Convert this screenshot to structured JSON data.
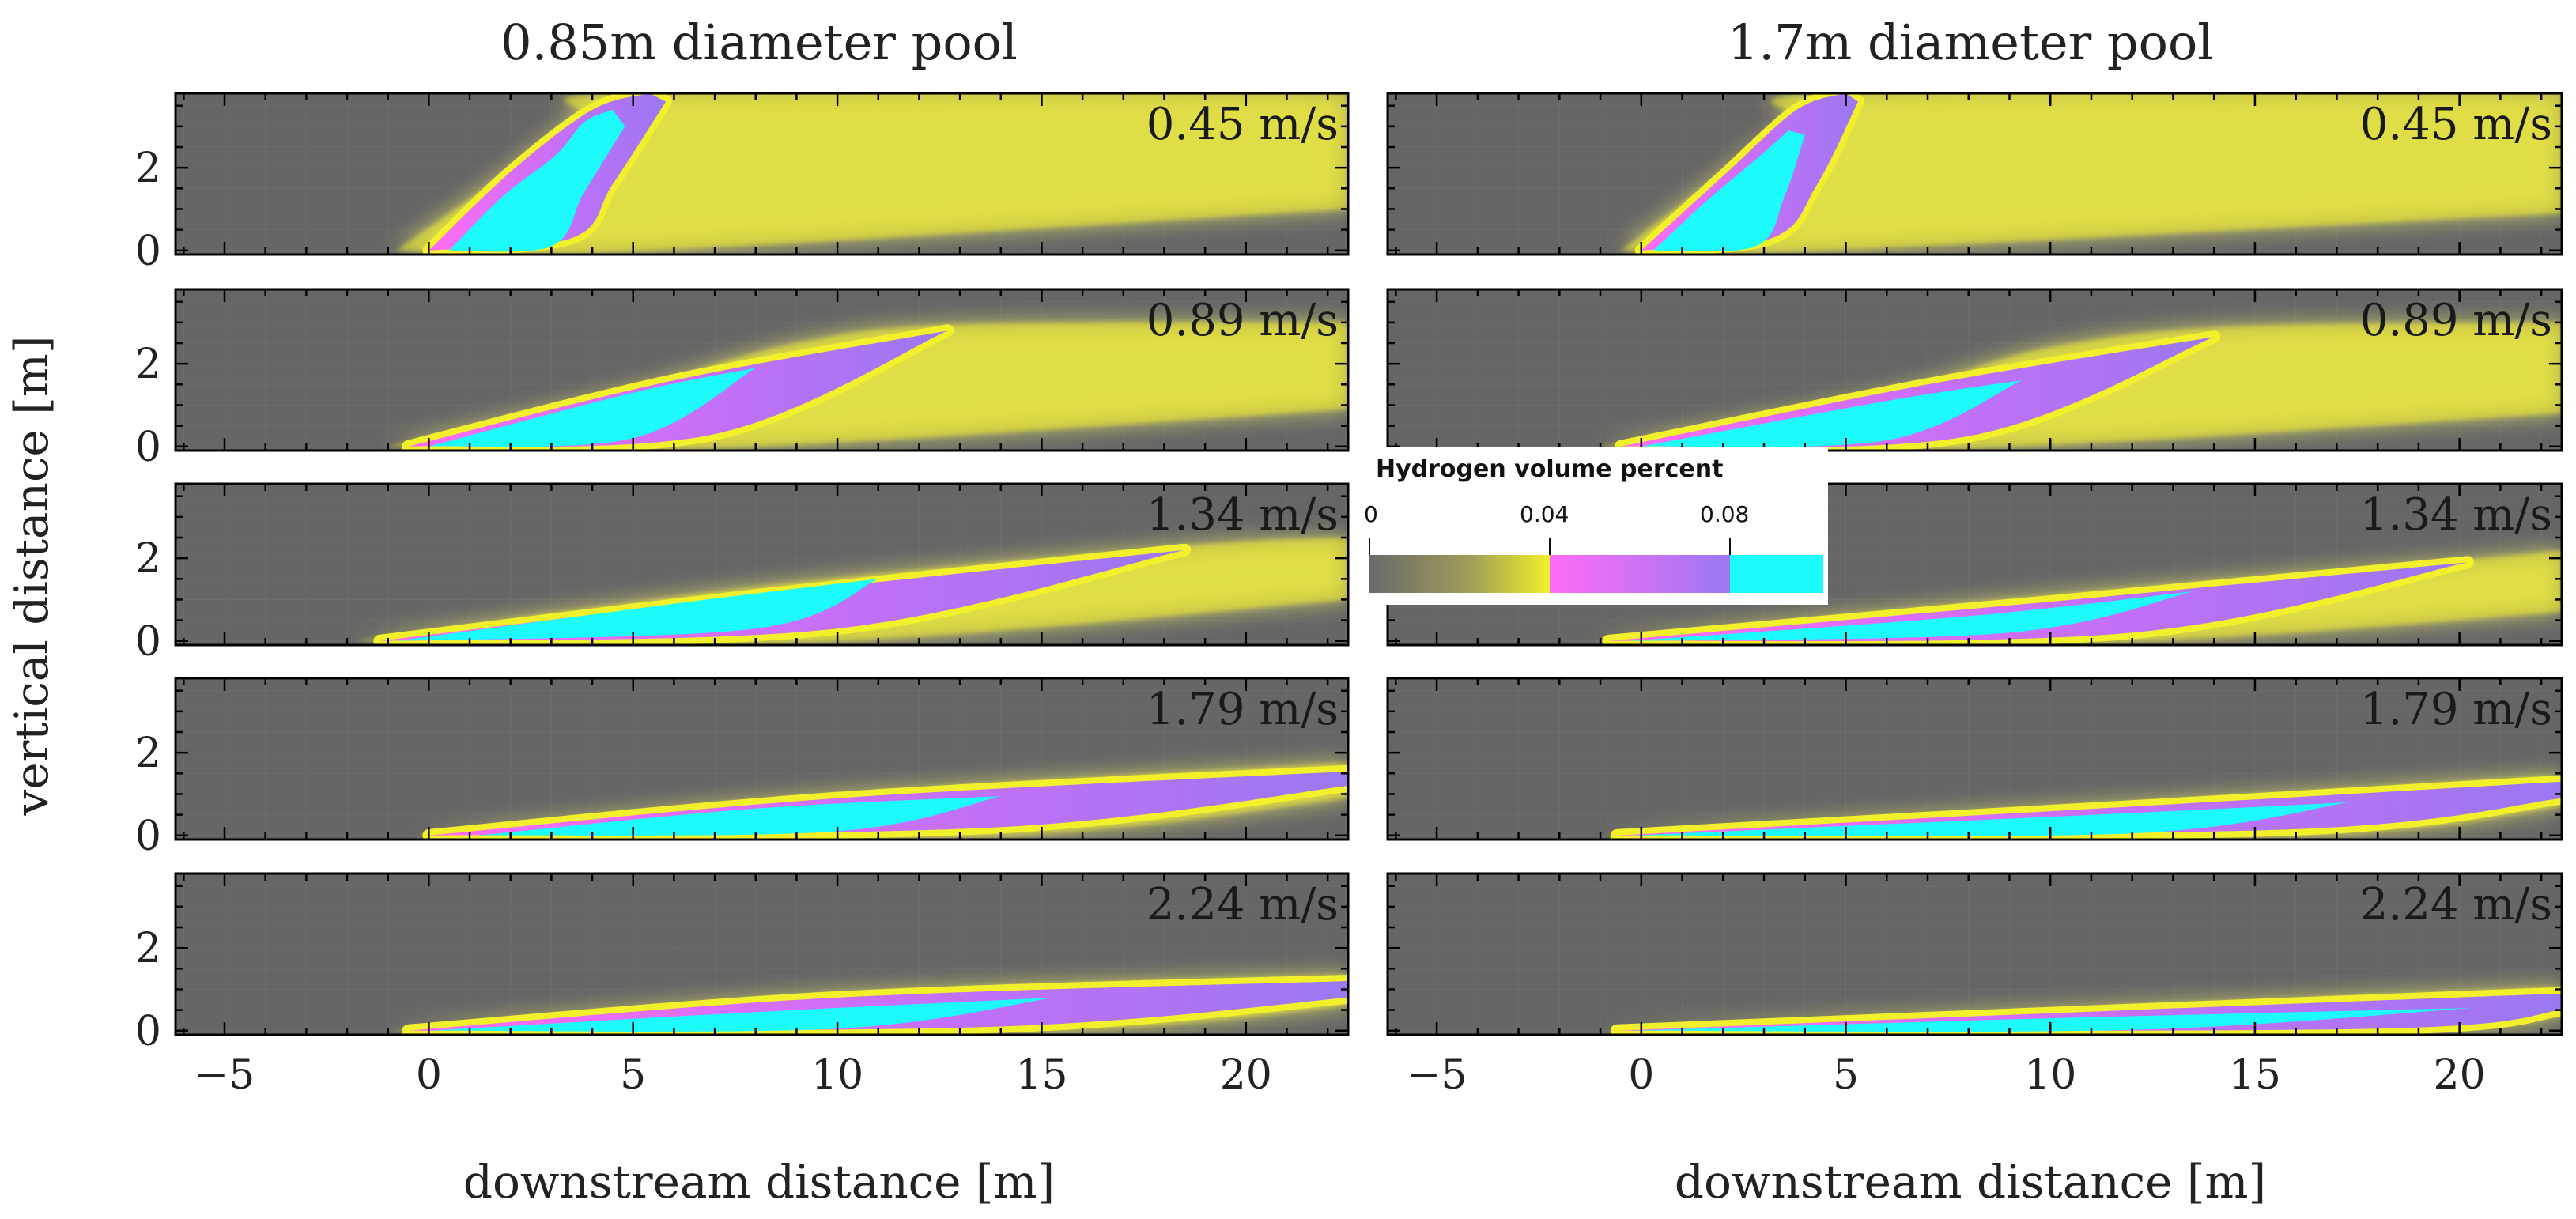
{
  "chart_data": {
    "type": "heatmap",
    "columns": [
      {
        "title": "0.85m diameter pool"
      },
      {
        "title": "1.7m diameter pool"
      }
    ],
    "speeds": [
      "0.45 m/s",
      "0.89 m/s",
      "1.34 m/s",
      "1.79 m/s",
      "2.24 m/s"
    ],
    "xlabel": "downstream distance [m]",
    "ylabel": "vertical distance [m]",
    "xlim": [
      -6.2,
      22.5
    ],
    "ylim": [
      -0.1,
      3.8
    ],
    "x_ticks": [
      -5,
      0,
      5,
      10,
      15,
      20
    ],
    "x_tick_labels": [
      "−5",
      "0",
      "5",
      "10",
      "15",
      "20"
    ],
    "y_ticks": [
      0,
      2
    ],
    "y_tick_labels": [
      "0",
      "2"
    ],
    "colorbar": {
      "title": "Hydrogen volume percent",
      "ticks": [
        0,
        0.04,
        0.08
      ],
      "tick_labels": [
        "0",
        "0.04",
        "0.08"
      ],
      "range": [
        0,
        0.1
      ]
    },
    "plumes": [
      [
        {
          "speed": 0.45,
          "yellow_top": [
            [
              -0.8,
              0
            ],
            [
              1.5,
              1.6
            ],
            [
              3.6,
              3.2
            ],
            [
              5,
              3.8
            ],
            [
              22.5,
              3.8
            ]
          ],
          "yellow_bottom": [
            [
              -0.8,
              0
            ],
            [
              5.5,
              0
            ],
            [
              22.5,
              1.0
            ]
          ],
          "magenta_top": [
            [
              0,
              0
            ],
            [
              2,
              1.9
            ],
            [
              4,
              3.4
            ],
            [
              5.4,
              3.8
            ]
          ],
          "magenta_bottom": [
            [
              0,
              0
            ],
            [
              3.5,
              0.3
            ],
            [
              4.5,
              1.6
            ],
            [
              5.8,
              3.6
            ]
          ],
          "cyan_top": [
            [
              0.5,
              0
            ],
            [
              1.8,
              1.3
            ],
            [
              3.1,
              2.3
            ],
            [
              3.8,
              3.1
            ],
            [
              4.5,
              3.4
            ]
          ],
          "cyan_bottom": [
            [
              0.5,
              0
            ],
            [
              3,
              0.1
            ],
            [
              3.8,
              1.4
            ],
            [
              4.8,
              3.0
            ]
          ]
        },
        {
          "speed": 0.89,
          "yellow_top": [
            [
              -1,
              0
            ],
            [
              5,
              1.4
            ],
            [
              9,
              2.5
            ],
            [
              13,
              2.95
            ],
            [
              22.5,
              3.0
            ]
          ],
          "yellow_bottom": [
            [
              -1,
              0
            ],
            [
              8,
              0
            ],
            [
              22.5,
              0.9
            ]
          ],
          "magenta_top": [
            [
              -0.5,
              0
            ],
            [
              6,
              1.6
            ],
            [
              12.7,
              2.8
            ]
          ],
          "magenta_bottom": [
            [
              -0.5,
              0
            ],
            [
              7,
              0.3
            ],
            [
              12.7,
              2.8
            ]
          ],
          "cyan_top": [
            [
              0,
              0
            ],
            [
              5,
              1.3
            ],
            [
              8,
              1.9
            ]
          ],
          "cyan_bottom": [
            [
              0,
              0
            ],
            [
              5,
              0.2
            ],
            [
              8,
              1.9
            ]
          ]
        },
        {
          "speed": 1.34,
          "yellow_top": [
            [
              -1.8,
              0
            ],
            [
              8,
              1.3
            ],
            [
              18.5,
              2.3
            ],
            [
              22.5,
              2.5
            ]
          ],
          "yellow_bottom": [
            [
              -1.8,
              0
            ],
            [
              10,
              0
            ],
            [
              22.5,
              1.0
            ]
          ],
          "magenta_top": [
            [
              -1.2,
              0
            ],
            [
              8,
              1.1
            ],
            [
              18.5,
              2.2
            ]
          ],
          "magenta_bottom": [
            [
              -1.2,
              0
            ],
            [
              10,
              0.3
            ],
            [
              18.5,
              2.2
            ]
          ],
          "cyan_top": [
            [
              -0.8,
              0
            ],
            [
              6,
              0.9
            ],
            [
              11,
              1.5
            ]
          ],
          "cyan_bottom": [
            [
              -0.8,
              0
            ],
            [
              8,
              0.3
            ],
            [
              11,
              1.5
            ]
          ]
        },
        {
          "speed": 1.79,
          "yellow_top": [
            [
              -0.3,
              0
            ],
            [
              10,
              1.0
            ],
            [
              22.5,
              1.75
            ]
          ],
          "yellow_bottom": [
            [
              -0.3,
              0
            ],
            [
              14,
              0
            ],
            [
              22.5,
              0.9
            ]
          ],
          "magenta_top": [
            [
              0,
              0
            ],
            [
              10,
              0.9
            ],
            [
              22.5,
              1.55
            ]
          ],
          "magenta_bottom": [
            [
              0,
              0
            ],
            [
              14,
              0.2
            ],
            [
              22.5,
              1.2
            ]
          ],
          "cyan_top": [
            [
              1.2,
              0
            ],
            [
              8,
              0.65
            ],
            [
              14,
              0.95
            ]
          ],
          "cyan_bottom": [
            [
              1.2,
              0
            ],
            [
              10,
              0.1
            ],
            [
              14,
              0.95
            ]
          ]
        },
        {
          "speed": 2.24,
          "yellow_top": [
            [
              -1,
              0
            ],
            [
              10,
              0.9
            ],
            [
              22.5,
              1.35
            ]
          ],
          "yellow_bottom": [
            [
              -1,
              0
            ],
            [
              15,
              0
            ],
            [
              22.5,
              0.6
            ]
          ],
          "magenta_top": [
            [
              -0.5,
              0
            ],
            [
              10,
              0.8
            ],
            [
              22.5,
              1.2
            ]
          ],
          "magenta_bottom": [
            [
              -0.5,
              0
            ],
            [
              14,
              0.1
            ],
            [
              22.5,
              0.8
            ]
          ],
          "cyan_top": [
            [
              0,
              0
            ],
            [
              8,
              0.45
            ],
            [
              15.3,
              0.8
            ]
          ],
          "cyan_bottom": [
            [
              0,
              0
            ],
            [
              10,
              0.05
            ],
            [
              15.3,
              0.8
            ]
          ]
        }
      ],
      [
        {
          "speed": 0.45,
          "yellow_top": [
            [
              -0.5,
              0
            ],
            [
              1.5,
              1.5
            ],
            [
              3.6,
              3.1
            ],
            [
              4.8,
              3.8
            ],
            [
              22.5,
              3.8
            ]
          ],
          "yellow_bottom": [
            [
              -0.5,
              0
            ],
            [
              4.5,
              0
            ],
            [
              22.5,
              0.9
            ]
          ],
          "magenta_top": [
            [
              0,
              0
            ],
            [
              2,
              1.8
            ],
            [
              3.8,
              3.4
            ],
            [
              5,
              3.8
            ]
          ],
          "magenta_bottom": [
            [
              0,
              0
            ],
            [
              3.2,
              0.3
            ],
            [
              4.3,
              1.6
            ],
            [
              5.3,
              3.6
            ]
          ],
          "cyan_top": [
            [
              0.3,
              0
            ],
            [
              1.6,
              1.2
            ],
            [
              2.8,
              2.2
            ],
            [
              3.6,
              2.9
            ]
          ],
          "cyan_bottom": [
            [
              0.3,
              0
            ],
            [
              2.8,
              0.1
            ],
            [
              3.5,
              1.3
            ],
            [
              4,
              2.8
            ]
          ]
        },
        {
          "speed": 0.89,
          "yellow_top": [
            [
              -1,
              0
            ],
            [
              6,
              1.3
            ],
            [
              10,
              2.4
            ],
            [
              14.5,
              2.9
            ],
            [
              22.5,
              3.0
            ]
          ],
          "yellow_bottom": [
            [
              -1,
              0
            ],
            [
              9,
              0
            ],
            [
              22.5,
              0.8
            ]
          ],
          "magenta_top": [
            [
              -0.5,
              0
            ],
            [
              7,
              1.5
            ],
            [
              14,
              2.65
            ]
          ],
          "magenta_bottom": [
            [
              -0.5,
              0
            ],
            [
              8,
              0.25
            ],
            [
              14,
              2.65
            ]
          ],
          "cyan_top": [
            [
              0,
              0
            ],
            [
              6,
              1.1
            ],
            [
              9.3,
              1.6
            ]
          ],
          "cyan_bottom": [
            [
              0,
              0
            ],
            [
              6,
              0.15
            ],
            [
              9.3,
              1.6
            ]
          ]
        },
        {
          "speed": 1.34,
          "yellow_top": [
            [
              -1.2,
              0
            ],
            [
              10,
              1.1
            ],
            [
              20.5,
              2.0
            ],
            [
              22.5,
              2.2
            ]
          ],
          "yellow_bottom": [
            [
              -1.2,
              0
            ],
            [
              12,
              0
            ],
            [
              22.5,
              0.7
            ]
          ],
          "magenta_top": [
            [
              -0.8,
              0
            ],
            [
              10,
              0.95
            ],
            [
              20.2,
              1.9
            ]
          ],
          "magenta_bottom": [
            [
              -0.8,
              0
            ],
            [
              12,
              0.2
            ],
            [
              20.2,
              1.9
            ]
          ],
          "cyan_top": [
            [
              -0.3,
              0
            ],
            [
              8,
              0.6
            ],
            [
              13.5,
              1.2
            ]
          ],
          "cyan_bottom": [
            [
              -0.3,
              0
            ],
            [
              9,
              0.2
            ],
            [
              13.5,
              1.2
            ]
          ]
        },
        {
          "speed": 1.79,
          "yellow_top": [
            [
              -1,
              0
            ],
            [
              12,
              0.8
            ],
            [
              22.5,
              1.45
            ]
          ],
          "yellow_bottom": [
            [
              -1,
              0
            ],
            [
              16,
              0
            ],
            [
              22.5,
              0.7
            ]
          ],
          "magenta_top": [
            [
              -0.6,
              0
            ],
            [
              12,
              0.7
            ],
            [
              22.5,
              1.3
            ]
          ],
          "magenta_bottom": [
            [
              -0.6,
              0
            ],
            [
              16,
              0.15
            ],
            [
              22.5,
              0.9
            ]
          ],
          "cyan_top": [
            [
              -0.2,
              0
            ],
            [
              10,
              0.45
            ],
            [
              17.3,
              0.8
            ]
          ],
          "cyan_bottom": [
            [
              -0.2,
              0
            ],
            [
              12,
              0.05
            ],
            [
              17.3,
              0.8
            ]
          ]
        },
        {
          "speed": 2.24,
          "yellow_top": [
            [
              -1,
              0
            ],
            [
              12,
              0.6
            ],
            [
              22.5,
              1.05
            ]
          ],
          "yellow_bottom": [
            [
              -1,
              0
            ],
            [
              18,
              0
            ],
            [
              22.5,
              0.35
            ]
          ],
          "magenta_top": [
            [
              -0.6,
              0
            ],
            [
              12,
              0.5
            ],
            [
              22.5,
              0.9
            ]
          ],
          "magenta_bottom": [
            [
              -0.6,
              0
            ],
            [
              18,
              0.05
            ],
            [
              22.5,
              0.5
            ]
          ],
          "cyan_top": [
            [
              -0.3,
              0
            ],
            [
              10,
              0.3
            ],
            [
              20.3,
              0.55
            ]
          ],
          "cyan_bottom": [
            [
              -0.3,
              0
            ],
            [
              12,
              0.02
            ],
            [
              20.3,
              0.55
            ]
          ]
        }
      ]
    ]
  },
  "colors": {
    "background": "#666666",
    "grid": "#7a7a7a",
    "yellow": "#f2f02a",
    "yellow_glow": "#d7d36a",
    "magenta": "#ff6cf6",
    "violet": "#9b78f2",
    "cyan": "#1cfafa",
    "frame": "#000000"
  }
}
